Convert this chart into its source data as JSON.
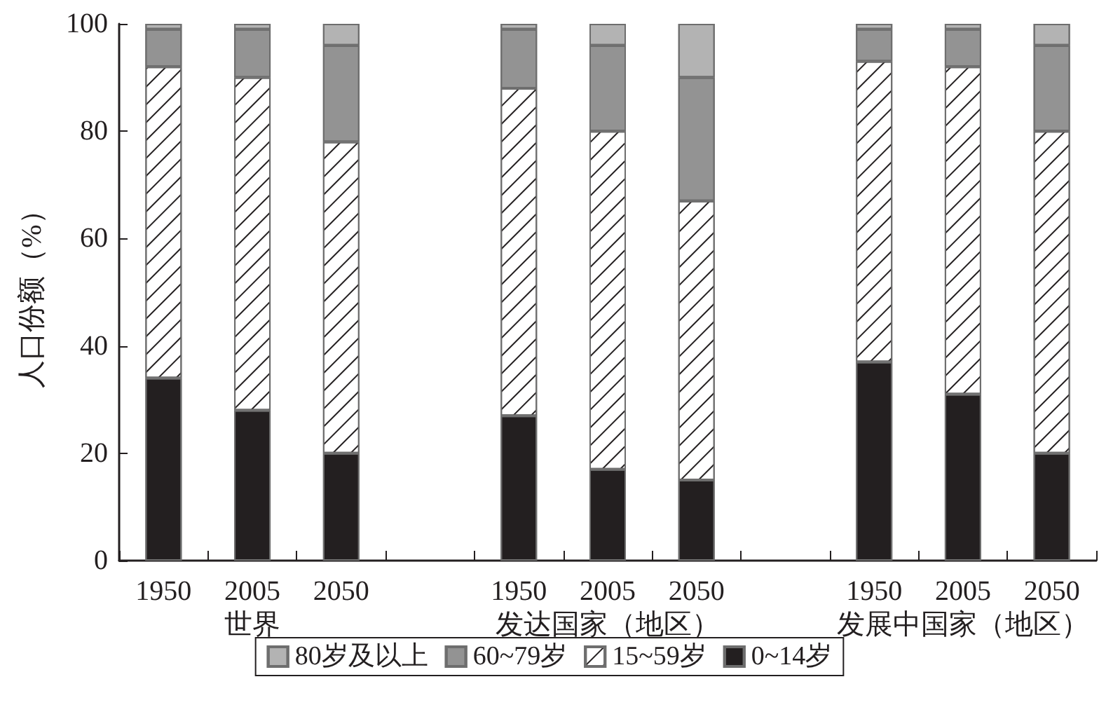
{
  "chart_data": {
    "type": "bar",
    "stacked": true,
    "ylabel": "人口份额（%）",
    "categories": [
      "1950",
      "2005",
      "2050",
      null,
      "1950",
      "2005",
      "2050",
      null,
      "1950",
      "2005",
      "2050"
    ],
    "series": [
      {
        "name": "0~14岁",
        "color": "#231f20",
        "values": [
          34,
          28,
          20,
          null,
          27,
          17,
          15,
          null,
          37,
          31,
          20
        ]
      },
      {
        "name": "15~59岁",
        "color": "#ffffff",
        "values": [
          58,
          62,
          58,
          null,
          61,
          63,
          52,
          null,
          56,
          61,
          60
        ]
      },
      {
        "name": "60~79岁",
        "color": "#939393",
        "values": [
          7,
          9,
          18,
          null,
          11,
          16,
          23,
          null,
          6,
          7,
          16
        ]
      },
      {
        "name": "80岁及以上",
        "color": "#b3b3b3",
        "values": [
          1,
          1,
          4,
          null,
          1,
          4,
          10,
          null,
          1,
          1,
          4
        ]
      }
    ],
    "annotations": [
      "世界",
      "发达国家（地区）",
      "发展中国家（地区）"
    ],
    "ylim": [
      0,
      100
    ],
    "yticks": [
      0,
      20,
      40,
      60,
      80,
      100
    ],
    "grid": false,
    "legend": "bottom"
  }
}
